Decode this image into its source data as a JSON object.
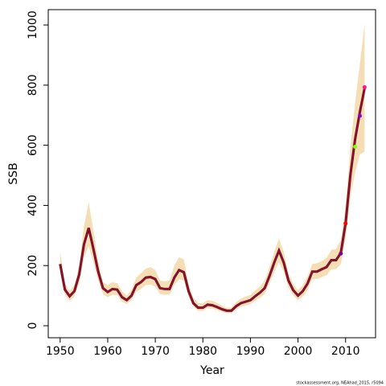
{
  "chart_data": {
    "type": "line",
    "xlabel": "Year",
    "ylabel": "SSB",
    "footnote": "stockassessment.org, NEAhad_2015, r5094",
    "x": [
      1950,
      1951,
      1952,
      1953,
      1954,
      1955,
      1956,
      1957,
      1958,
      1959,
      1960,
      1961,
      1962,
      1963,
      1964,
      1965,
      1966,
      1967,
      1968,
      1969,
      1970,
      1971,
      1972,
      1973,
      1974,
      1975,
      1976,
      1977,
      1978,
      1979,
      1980,
      1981,
      1982,
      1983,
      1984,
      1985,
      1986,
      1987,
      1988,
      1989,
      1990,
      1991,
      1992,
      1993,
      1994,
      1995,
      1996,
      1997,
      1998,
      1999,
      2000,
      2001,
      2002,
      2003,
      2004,
      2005,
      2006,
      2007,
      2008,
      2009,
      2010,
      2011,
      2012,
      2013,
      2014
    ],
    "series": [
      {
        "color": "#5a0a28",
        "values": [
          205,
          120,
          98,
          115,
          170,
          270,
          325,
          255,
          180,
          125,
          112,
          122,
          120,
          95,
          85,
          100,
          135,
          145,
          160,
          162,
          155,
          125,
          122,
          122,
          160,
          185,
          178,
          115,
          75,
          60,
          60,
          70,
          68,
          62,
          55,
          50,
          50,
          65,
          75,
          80,
          85,
          98,
          110,
          125,
          165,
          210,
          250,
          210,
          150,
          118,
          100,
          115,
          140,
          180,
          180,
          188,
          195,
          218,
          218,
          242,
          340,
          500,
          620,
          710,
          790
        ]
      }
    ],
    "band": {
      "color": "#f5deb3",
      "upper": [
        245,
        140,
        115,
        135,
        200,
        330,
        410,
        315,
        215,
        145,
        135,
        145,
        142,
        115,
        100,
        120,
        160,
        175,
        190,
        195,
        185,
        150,
        148,
        150,
        200,
        228,
        220,
        140,
        92,
        75,
        75,
        85,
        83,
        75,
        67,
        60,
        60,
        78,
        90,
        97,
        102,
        117,
        130,
        150,
        195,
        245,
        290,
        245,
        175,
        138,
        118,
        135,
        165,
        205,
        208,
        215,
        225,
        252,
        255,
        285,
        395,
        590,
        740,
        870,
        1005
      ],
      "lower": [
        175,
        102,
        83,
        97,
        142,
        225,
        265,
        210,
        150,
        105,
        95,
        103,
        102,
        80,
        72,
        85,
        113,
        122,
        135,
        137,
        130,
        105,
        103,
        103,
        135,
        155,
        150,
        97,
        63,
        50,
        50,
        58,
        57,
        52,
        46,
        42,
        42,
        55,
        63,
        68,
        72,
        83,
        93,
        105,
        140,
        178,
        212,
        178,
        127,
        100,
        85,
        97,
        118,
        155,
        155,
        162,
        168,
        188,
        188,
        205,
        290,
        425,
        510,
        570,
        578
      ]
    },
    "points": {
      "x": [
        2009,
        2010,
        2012,
        2013,
        2014
      ],
      "values": [
        240,
        340,
        595,
        698,
        793
      ],
      "colors": [
        "#800080",
        "#ff0000",
        "#7fff00",
        "#9400d3",
        "#ff1493"
      ]
    },
    "xlim": [
      1947.5,
      2016.3
    ],
    "ylim": [
      -40,
      1051
    ],
    "xticks": [
      1950,
      1960,
      1970,
      1980,
      1990,
      2000,
      2010
    ],
    "yticks": [
      0,
      200,
      400,
      600,
      800,
      1000
    ]
  }
}
